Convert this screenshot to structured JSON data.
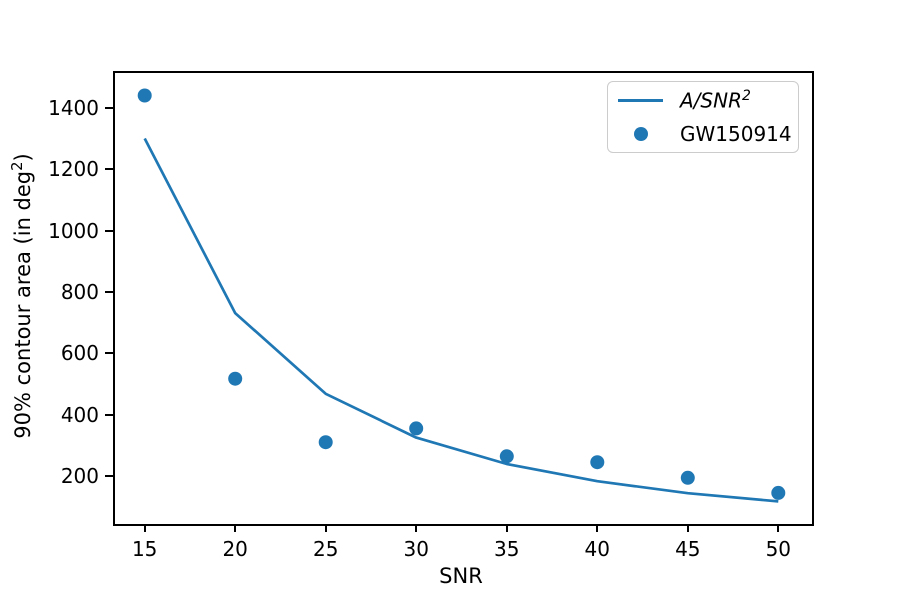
{
  "labels": {
    "xlabel": "SNR",
    "ylabel_prefix": "90% contour area (in deg",
    "ylabel_sup": "2",
    "ylabel_suffix": ")",
    "ylabel_full": "90% contour area (in deg^2)"
  },
  "legend": {
    "line_label_main": "A/SNR",
    "line_label_sup": "2",
    "line_label_full": "A/SNR^2",
    "scatter_label": "GW150914"
  },
  "colors": {
    "accent_blue": "#1f77b4",
    "spine": "#000000",
    "legend_border": "#cccccc",
    "background": "#ffffff"
  },
  "chart_data": {
    "type": "line",
    "subtype": "line-plus-scatter",
    "title": "",
    "xlabel": "SNR",
    "ylabel": "90% contour area (in deg^2)",
    "xlim": [
      13.25,
      51.75
    ],
    "ylim": [
      50,
      1520
    ],
    "xticks": [
      15,
      20,
      25,
      30,
      35,
      40,
      45,
      50
    ],
    "yticks": [
      200,
      400,
      600,
      800,
      1000,
      1200,
      1400
    ],
    "grid": false,
    "legend_position": "upper right",
    "series": [
      {
        "name": "A/SNR^2",
        "kind": "line",
        "color": "#1f77b4",
        "line_width": 2.7,
        "x": [
          15,
          20,
          25,
          30,
          35,
          40,
          45,
          50
        ],
        "y": [
          1300,
          731,
          468,
          325,
          239,
          183,
          144,
          117
        ]
      },
      {
        "name": "GW150914",
        "kind": "scatter",
        "color": "#1f77b4",
        "marker": "circle",
        "marker_diameter_px": 14,
        "x": [
          15,
          20,
          25,
          30,
          35,
          40,
          45,
          50
        ],
        "y": [
          1440,
          517,
          310,
          355,
          264,
          245,
          194,
          145
        ]
      }
    ]
  }
}
